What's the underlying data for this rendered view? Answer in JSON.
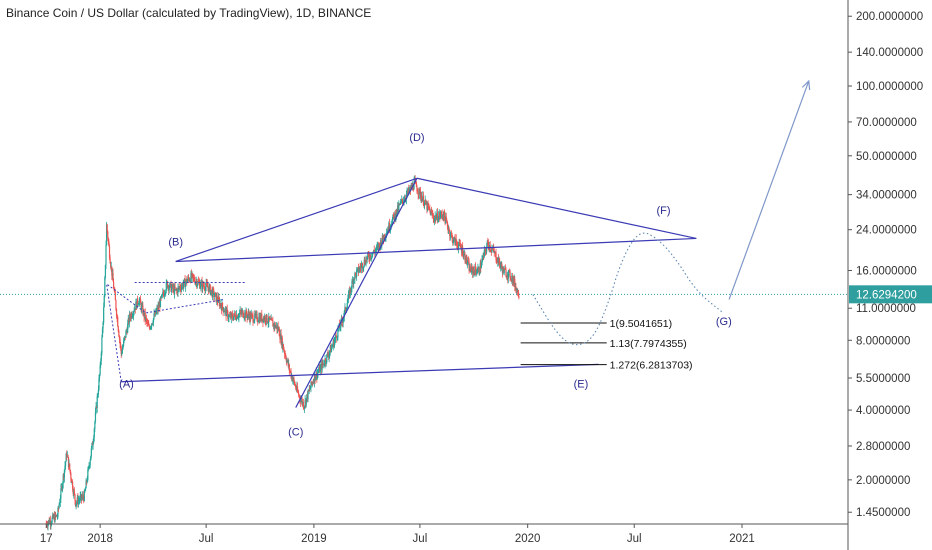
{
  "header": {
    "title": "Binance Coin / US Dollar (calculated by TradingView), 1D, BINANCE"
  },
  "colors": {
    "up": "#26a69a",
    "down": "#ef5350",
    "pattern": "#3b3bb5",
    "projection": "#5e88b0",
    "current_line": "#2aa0a0",
    "price_tag_bg": "#2f9e9e"
  },
  "chart_data": {
    "type": "candlestick",
    "symbol": "Binance Coin / US Dollar (calculated by TradingView)",
    "interval": "1D",
    "exchange": "BINANCE",
    "y_scale": "log",
    "x_range": [
      "2017-07-14",
      "2021-07-01"
    ],
    "y_range": [
      1.29,
      235
    ],
    "y_ticks": [
      "1.4500000",
      "2.0000000",
      "2.8000000",
      "4.0000000",
      "5.5000000",
      "8.0000000",
      "11.0000000",
      "16.0000000",
      "24.0000000",
      "34.0000000",
      "50.0000000",
      "70.0000000",
      "100.0000000",
      "140.0000000",
      "200.0000000"
    ],
    "x_ticks": [
      {
        "label": "17",
        "date": "2017-10-01"
      },
      {
        "label": "2018",
        "date": "2018-01-01"
      },
      {
        "label": "Jul",
        "date": "2018-07-01"
      },
      {
        "label": "2019",
        "date": "2019-01-01"
      },
      {
        "label": "Jul",
        "date": "2019-07-01"
      },
      {
        "label": "2020",
        "date": "2020-01-01"
      },
      {
        "label": "Jul",
        "date": "2020-07-01"
      },
      {
        "label": "2021",
        "date": "2021-01-01"
      }
    ],
    "price_path": [
      [
        "2017-10-01",
        1.3
      ],
      [
        "2017-10-20",
        1.4
      ],
      [
        "2017-11-05",
        2.6
      ],
      [
        "2017-11-20",
        1.6
      ],
      [
        "2017-12-05",
        1.7
      ],
      [
        "2017-12-20",
        3.0
      ],
      [
        "2018-01-01",
        6.0
      ],
      [
        "2018-01-08",
        12.0
      ],
      [
        "2018-01-12",
        25.0
      ],
      [
        "2018-01-18",
        18.0
      ],
      [
        "2018-01-25",
        13.0
      ],
      [
        "2018-02-06",
        7.0
      ],
      [
        "2018-02-20",
        10.0
      ],
      [
        "2018-03-08",
        12.0
      ],
      [
        "2018-03-25",
        9.0
      ],
      [
        "2018-04-10",
        11.0
      ],
      [
        "2018-04-25",
        14.0
      ],
      [
        "2018-05-10",
        13.0
      ],
      [
        "2018-06-05",
        15.0
      ],
      [
        "2018-06-20",
        14.0
      ],
      [
        "2018-07-05",
        13.5
      ],
      [
        "2018-07-20",
        12.0
      ],
      [
        "2018-08-10",
        10.0
      ],
      [
        "2018-09-01",
        10.5
      ],
      [
        "2018-09-20",
        10.0
      ],
      [
        "2018-10-10",
        10.0
      ],
      [
        "2018-11-01",
        9.0
      ],
      [
        "2018-11-20",
        6.0
      ],
      [
        "2018-12-05",
        4.7
      ],
      [
        "2018-12-15",
        4.2
      ],
      [
        "2019-01-01",
        5.5
      ],
      [
        "2019-01-15",
        6.2
      ],
      [
        "2019-02-01",
        7.5
      ],
      [
        "2019-02-20",
        10.0
      ],
      [
        "2019-03-10",
        15.0
      ],
      [
        "2019-04-01",
        18.0
      ],
      [
        "2019-04-20",
        20.0
      ],
      [
        "2019-05-10",
        25.0
      ],
      [
        "2019-06-01",
        32.0
      ],
      [
        "2019-06-22",
        38.0
      ],
      [
        "2019-07-10",
        31.0
      ],
      [
        "2019-07-25",
        27.0
      ],
      [
        "2019-08-10",
        28.0
      ],
      [
        "2019-08-25",
        22.0
      ],
      [
        "2019-09-10",
        20.0
      ],
      [
        "2019-09-25",
        16.0
      ],
      [
        "2019-10-10",
        16.0
      ],
      [
        "2019-10-25",
        21.0
      ],
      [
        "2019-11-05",
        19.0
      ],
      [
        "2019-11-20",
        16.0
      ],
      [
        "2019-12-05",
        15.0
      ],
      [
        "2019-12-17",
        12.6
      ]
    ],
    "current_price": 12.62942,
    "current_price_label": "12.6294200",
    "wave_points": [
      {
        "label": "(A)",
        "date": "2018-02-06",
        "value": 5.3
      },
      {
        "label": "(B)",
        "date": "2018-05-10",
        "value": 17.5
      },
      {
        "label": "(C)",
        "date": "2018-12-10",
        "value": 4.15
      },
      {
        "label": "(D)",
        "date": "2019-06-26",
        "value": 40.0
      },
      {
        "label": "(E)",
        "date": "2020-05-01",
        "value": 5.9
      },
      {
        "label": "(F)",
        "date": "2020-10-01",
        "value": 25.0
      },
      {
        "label": "(G)",
        "date": "2020-11-30",
        "value": 10.5
      }
    ],
    "wave_label_positions": [
      {
        "label": "(A)",
        "date": "2018-02-15",
        "value": 5.0
      },
      {
        "label": "(B)",
        "date": "2018-05-10",
        "value": 20.5
      },
      {
        "label": "(C)",
        "date": "2018-12-01",
        "value": 3.1
      },
      {
        "label": "(D)",
        "date": "2019-06-26",
        "value": 58.0
      },
      {
        "label": "(E)",
        "date": "2020-04-01",
        "value": 5.0
      },
      {
        "label": "(F)",
        "date": "2020-08-20",
        "value": 28.0
      },
      {
        "label": "(G)",
        "date": "2020-12-01",
        "value": 9.3
      }
    ],
    "trendlines": [
      {
        "name": "upper-contracting",
        "from": [
          "2018-05-10",
          17.5
        ],
        "to": [
          "2020-10-15",
          22.0
        ]
      },
      {
        "name": "lower-contracting",
        "from": [
          "2018-02-06",
          5.3
        ],
        "to": [
          "2020-05-01",
          6.3
        ]
      },
      {
        "name": "b-to-d-line",
        "from": [
          "2018-05-10",
          17.5
        ],
        "to": [
          "2019-06-26",
          40.0
        ]
      },
      {
        "name": "c-to-d-line",
        "from": [
          "2018-12-01",
          4.1
        ],
        "to": [
          "2019-06-26",
          40.0
        ]
      },
      {
        "name": "d-to-f-line",
        "from": [
          "2019-06-26",
          40.0
        ],
        "to": [
          "2020-10-15",
          22.0
        ]
      }
    ],
    "fib_levels": [
      {
        "ratio": "1",
        "value": 9.5041651,
        "label": "1(9.5041651)"
      },
      {
        "ratio": "1.13",
        "value": 7.7974355,
        "label": "1.13(7.7974355)"
      },
      {
        "ratio": "1.272",
        "value": 6.2813703,
        "label": "1.272(6.2813703)"
      }
    ],
    "projection_path": [
      [
        "2020-01-10",
        12.6
      ],
      [
        "2020-02-20",
        8.5
      ],
      [
        "2020-03-20",
        7.5
      ],
      [
        "2020-04-20",
        8.0
      ],
      [
        "2020-05-15",
        11.0
      ],
      [
        "2020-06-10",
        18.0
      ],
      [
        "2020-07-10",
        24.0
      ],
      [
        "2020-08-10",
        22.0
      ],
      [
        "2020-09-10",
        18.0
      ],
      [
        "2020-10-15",
        13.0
      ],
      [
        "2020-11-30",
        10.5
      ]
    ],
    "arrow": {
      "from": [
        "2020-12-10",
        12.0
      ],
      "to": [
        "2021-04-25",
        105.0
      ]
    }
  }
}
